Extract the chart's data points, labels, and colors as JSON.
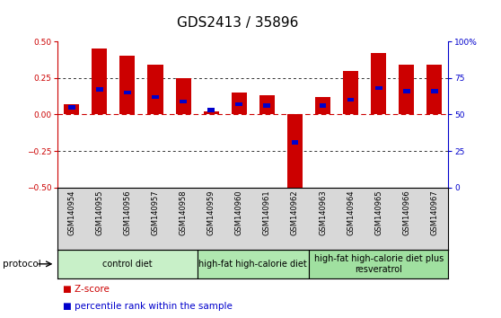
{
  "title": "GDS2413 / 35896",
  "samples": [
    "GSM140954",
    "GSM140955",
    "GSM140956",
    "GSM140957",
    "GSM140958",
    "GSM140959",
    "GSM140960",
    "GSM140961",
    "GSM140962",
    "GSM140963",
    "GSM140964",
    "GSM140965",
    "GSM140966",
    "GSM140967"
  ],
  "zscore": [
    0.07,
    0.45,
    0.4,
    0.34,
    0.25,
    0.02,
    0.15,
    0.13,
    -0.52,
    0.12,
    0.3,
    0.42,
    0.34,
    0.34
  ],
  "percentile": [
    55,
    67,
    65,
    62,
    59,
    53,
    57,
    56,
    31,
    56,
    60,
    68,
    66,
    66
  ],
  "zscore_color": "#cc0000",
  "percentile_color": "#0000cc",
  "ylim_left": [
    -0.5,
    0.5
  ],
  "ylim_right": [
    0,
    100
  ],
  "yticks_left": [
    -0.5,
    -0.25,
    0,
    0.25,
    0.5
  ],
  "yticks_right": [
    0,
    25,
    50,
    75,
    100
  ],
  "protocol_groups": [
    {
      "label": "control diet",
      "start": 0,
      "end": 4,
      "color": "#c8f0c8"
    },
    {
      "label": "high-fat high-calorie diet",
      "start": 5,
      "end": 8,
      "color": "#b0e8b0"
    },
    {
      "label": "high-fat high-calorie diet plus\nresveratrol",
      "start": 9,
      "end": 13,
      "color": "#a0e0a0"
    }
  ],
  "protocol_label": "protocol",
  "legend_zscore": "Z-score",
  "legend_percentile": "percentile rank within the sample",
  "bar_width": 0.55,
  "zero_line_color": "#cc0000",
  "dotted_line_color": "#333333",
  "axis_color_left": "#cc0000",
  "axis_color_right": "#0000cc",
  "title_fontsize": 11,
  "tick_fontsize": 6.5,
  "sample_fontsize": 6,
  "protocol_fontsize": 7.5,
  "legend_fontsize": 7.5,
  "bg_color": "#d8d8d8"
}
